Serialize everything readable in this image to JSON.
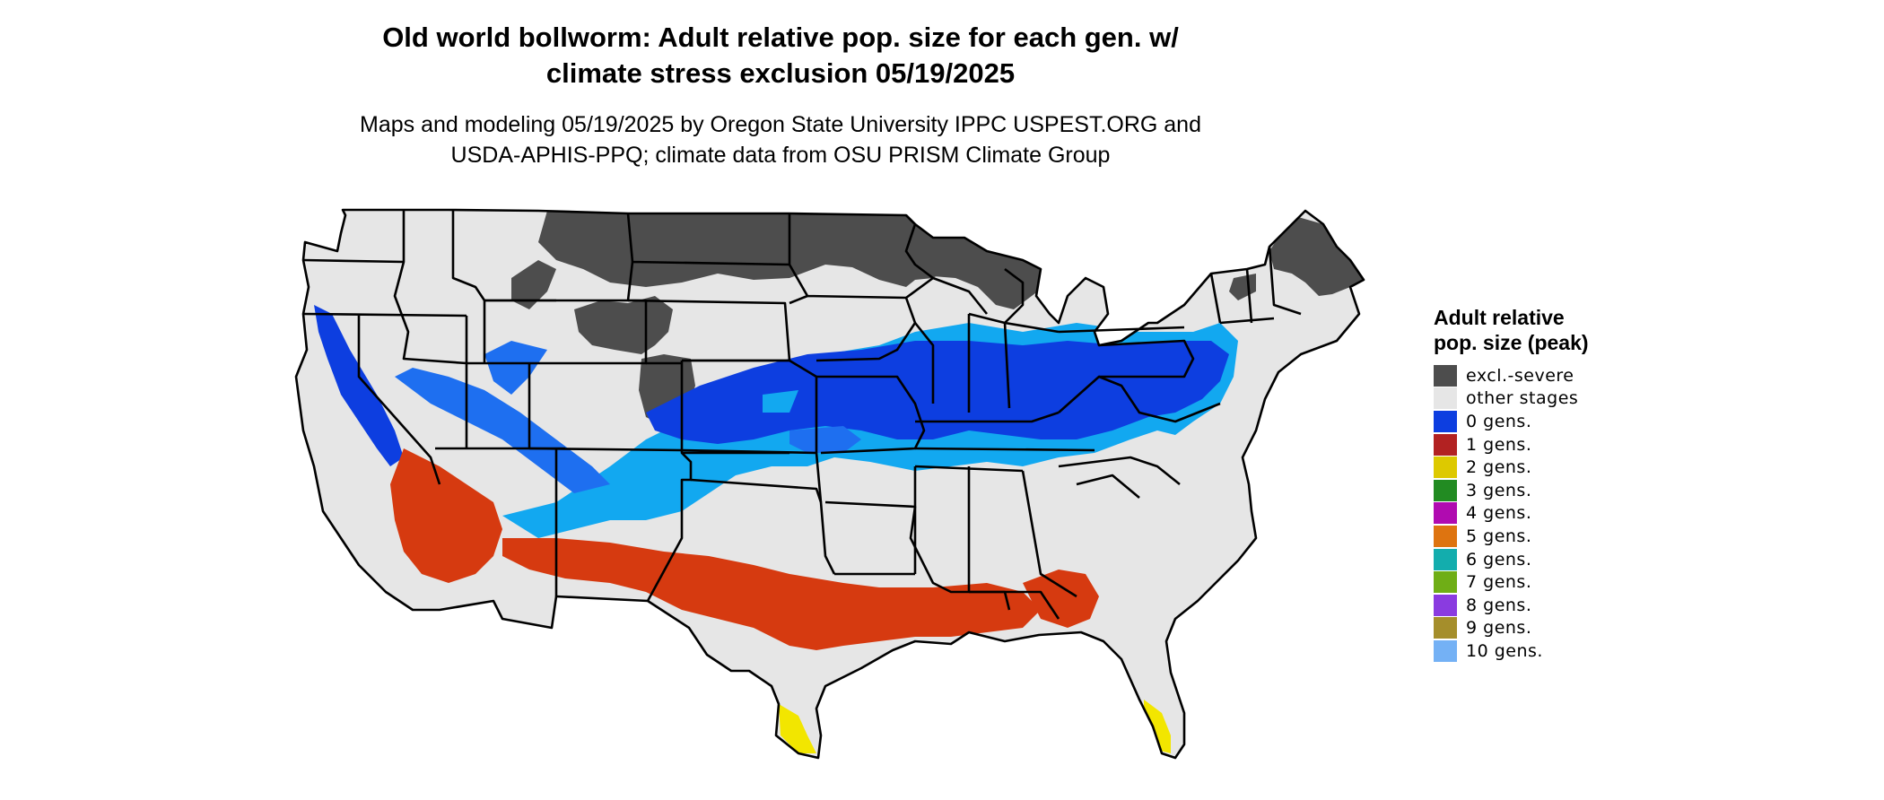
{
  "header": {
    "title_line1": "Old world bollworm: Adult relative pop. size for each gen. w/",
    "title_line2": "climate stress exclusion 05/19/2025",
    "subtitle_line1": "Maps and modeling 05/19/2025 by Oregon State University IPPC USPEST.ORG and",
    "subtitle_line2": "USDA-APHIS-PPQ; climate data from OSU PRISM Climate Group"
  },
  "legend": {
    "title": "Adult relative pop. size (peak)",
    "items": [
      {
        "label": "excl.-severe",
        "color": "#4d4d4d"
      },
      {
        "label": "other stages",
        "color": "#e6e6e6"
      },
      {
        "label": "0 gens.",
        "color": "#0d3ee0"
      },
      {
        "label": "1 gens.",
        "color": "#b22222"
      },
      {
        "label": "2 gens.",
        "color": "#ddc900"
      },
      {
        "label": "3 gens.",
        "color": "#228b22"
      },
      {
        "label": "4 gens.",
        "color": "#b00bb0"
      },
      {
        "label": "5 gens.",
        "color": "#de7410"
      },
      {
        "label": "6 gens.",
        "color": "#13adad"
      },
      {
        "label": "7 gens.",
        "color": "#6fae16"
      },
      {
        "label": "8 gens.",
        "color": "#8a3be0"
      },
      {
        "label": "9 gens.",
        "color": "#a58e2b"
      },
      {
        "label": "10 gens.",
        "color": "#74b1f5"
      }
    ]
  },
  "map": {
    "colors": {
      "land": "#e6e6e6",
      "excluded": "#4d4d4d",
      "blue_dark": "#0d3ee0",
      "blue_mid": "#1e6ff0",
      "blue_light": "#12a8f0",
      "red": "#d63a10",
      "red_dark": "#b22a10",
      "yellow": "#f2e600",
      "border": "#000000"
    }
  }
}
